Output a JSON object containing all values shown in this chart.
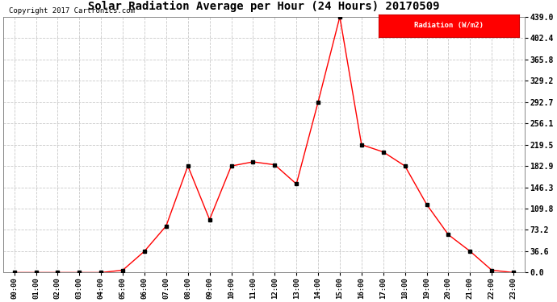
{
  "title": "Solar Radiation Average per Hour (24 Hours) 20170509",
  "copyright": "Copyright 2017 Cartronics.com",
  "legend_label": "Radiation (W/m2)",
  "hours": [
    "00:00",
    "01:00",
    "02:00",
    "03:00",
    "04:00",
    "05:00",
    "06:00",
    "07:00",
    "08:00",
    "09:00",
    "10:00",
    "11:00",
    "12:00",
    "13:00",
    "14:00",
    "15:00",
    "16:00",
    "17:00",
    "18:00",
    "19:00",
    "20:00",
    "21:00",
    "22:00",
    "23:00"
  ],
  "values": [
    0.0,
    0.0,
    0.0,
    0.0,
    0.0,
    4.0,
    36.6,
    80.0,
    182.9,
    91.0,
    182.9,
    190.0,
    185.0,
    152.0,
    292.7,
    439.0,
    219.5,
    207.0,
    182.9,
    117.0,
    65.0,
    36.6,
    4.0,
    0.0
  ],
  "line_color": "red",
  "marker_color": "black",
  "bg_color": "#ffffff",
  "grid_color": "#bbbbbb",
  "yticks": [
    0.0,
    36.6,
    73.2,
    109.8,
    146.3,
    182.9,
    219.5,
    256.1,
    292.7,
    329.2,
    365.8,
    402.4,
    439.0
  ],
  "ymax": 439.0,
  "legend_bg": "red",
  "legend_text_color": "white"
}
